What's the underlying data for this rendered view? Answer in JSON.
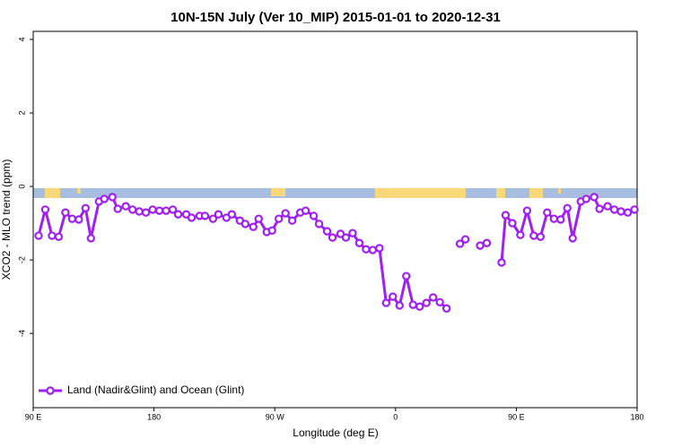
{
  "chart_data": {
    "type": "line",
    "title": "10N-15N July (Ver 10_MIP)   2015-01-01 to 2020-12-31",
    "x_label": "Longitude (deg E)",
    "y_label": "XCO2 - MLO trend (ppm)",
    "x": [
      94,
      99,
      104,
      109,
      114,
      119,
      124,
      129,
      133,
      139,
      143,
      149,
      153,
      159,
      164,
      169,
      174,
      179,
      184,
      189,
      194,
      198,
      204,
      208,
      214,
      218,
      224,
      228,
      234,
      238,
      244,
      248,
      254,
      258,
      264,
      268,
      273,
      278,
      283,
      289,
      293,
      299,
      303,
      309,
      313,
      319,
      323,
      328,
      333,
      338,
      343,
      348,
      353,
      358,
      363,
      368,
      373,
      378,
      383,
      388,
      393,
      398,
      403,
      408,
      412,
      418,
      423,
      428,
      432,
      439,
      442,
      447,
      453,
      458,
      463,
      468,
      473,
      478,
      483,
      488,
      492,
      498,
      502,
      508,
      512,
      518,
      523,
      528,
      533,
      538
    ],
    "series": [
      {
        "name": "Land (Nadir&Glint) and Ocean (Glint)",
        "color": "#a020f0",
        "values": [
          -1.34,
          -0.63,
          -1.34,
          -1.37,
          -0.71,
          -0.88,
          -0.9,
          -0.59,
          -1.41,
          -0.41,
          -0.34,
          -0.29,
          -0.61,
          -0.54,
          -0.63,
          -0.68,
          -0.71,
          -0.63,
          -0.66,
          -0.66,
          -0.63,
          -0.76,
          -0.76,
          -0.85,
          -0.8,
          -0.8,
          -0.88,
          -0.76,
          -0.85,
          -0.76,
          -0.93,
          -1.02,
          -1.1,
          -0.88,
          -1.24,
          -1.2,
          -0.88,
          -0.73,
          -0.93,
          -0.71,
          -0.66,
          -0.8,
          -1.02,
          -1.22,
          -1.39,
          -1.29,
          -1.39,
          -1.27,
          -1.54,
          -1.71,
          -1.73,
          -1.68,
          -3.17,
          -3.0,
          -3.24,
          -2.44,
          -3.22,
          -3.27,
          -3.17,
          -3.02,
          -3.15,
          -3.32,
          null,
          -1.56,
          -1.44,
          null,
          -1.61,
          -1.54,
          null,
          -2.07,
          -0.78,
          -1.0,
          -1.32,
          -0.66,
          -1.34,
          -1.37,
          -0.71,
          -0.88,
          -0.9,
          -0.59,
          -1.41,
          -0.41,
          -0.34,
          -0.29,
          -0.61,
          -0.54,
          -0.63,
          -0.68,
          -0.71,
          -0.63
        ]
      }
    ],
    "xlim": [
      90,
      540
    ],
    "xticks": [
      {
        "value": 90,
        "label": "90 E"
      },
      180,
      {
        "value": 270,
        "label": "90 W"
      },
      {
        "value": 360,
        "label": "0"
      },
      {
        "value": 450,
        "label": "90 E"
      },
      {
        "value": 540,
        "label": "180"
      }
    ],
    "ylim": [
      -6.02,
      4.22
    ],
    "yticks": [
      4,
      2,
      0,
      -2,
      -4
    ],
    "legend": "bottom-left"
  }
}
